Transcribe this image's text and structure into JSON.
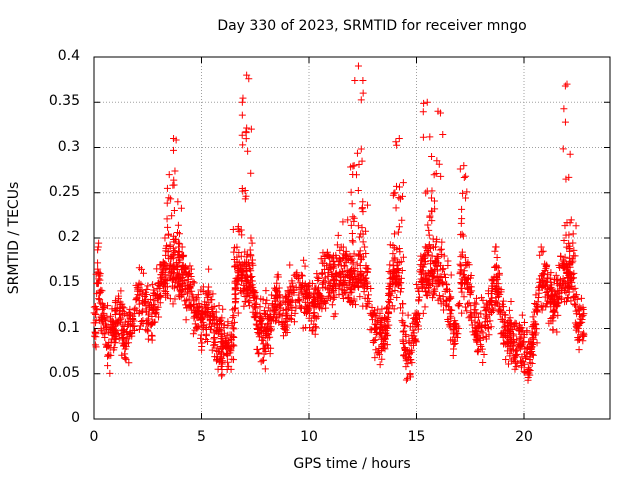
{
  "chart_data": {
    "type": "scatter",
    "title": "Day 330 of 2023, SRMTID for receiver mngo",
    "xlabel": "GPS time / hours",
    "ylabel": "SRMTID / TECUs",
    "xlim": [
      0,
      24
    ],
    "ylim": [
      0,
      0.4
    ],
    "xticks": [
      "0",
      "5",
      "10",
      "15",
      "20"
    ],
    "xtick_values": [
      0,
      5,
      10,
      15,
      20
    ],
    "yticks": [
      "0",
      "0.05",
      "0.1",
      "0.15",
      "0.2",
      "0.25",
      "0.3",
      "0.35",
      "0.4"
    ],
    "ytick_values": [
      0,
      0.05,
      0.1,
      0.15,
      0.2,
      0.25,
      0.3,
      0.35,
      0.4
    ],
    "grid": true,
    "marker": "+",
    "marker_color": "#ff0000",
    "x_data_extent": [
      0,
      22.8
    ],
    "approx_point_count": 2400,
    "series": [
      {
        "name": "SRMTID (sampled)",
        "points": [
          [
            0.1,
            0.16
          ],
          [
            0.2,
            0.19
          ],
          [
            0.3,
            0.14
          ],
          [
            0.5,
            0.09
          ],
          [
            0.7,
            0.07
          ],
          [
            0.9,
            0.1
          ],
          [
            1.2,
            0.12
          ],
          [
            1.5,
            0.08
          ],
          [
            1.8,
            0.11
          ],
          [
            2.1,
            0.15
          ],
          [
            2.4,
            0.13
          ],
          [
            2.7,
            0.12
          ],
          [
            3.0,
            0.15
          ],
          [
            3.3,
            0.2
          ],
          [
            3.5,
            0.27
          ],
          [
            3.7,
            0.31
          ],
          [
            3.9,
            0.24
          ],
          [
            4.1,
            0.19
          ],
          [
            4.4,
            0.16
          ],
          [
            4.7,
            0.12
          ],
          [
            5.0,
            0.11
          ],
          [
            5.3,
            0.14
          ],
          [
            5.6,
            0.09
          ],
          [
            5.9,
            0.08
          ],
          [
            6.2,
            0.07
          ],
          [
            6.5,
            0.09
          ],
          [
            6.7,
            0.21
          ],
          [
            6.9,
            0.35
          ],
          [
            7.1,
            0.38
          ],
          [
            7.3,
            0.2
          ],
          [
            7.6,
            0.1
          ],
          [
            7.9,
            0.09
          ],
          [
            8.2,
            0.11
          ],
          [
            8.5,
            0.15
          ],
          [
            8.8,
            0.12
          ],
          [
            9.1,
            0.14
          ],
          [
            9.4,
            0.16
          ],
          [
            9.7,
            0.15
          ],
          [
            10.0,
            0.14
          ],
          [
            10.3,
            0.13
          ],
          [
            10.6,
            0.16
          ],
          [
            10.9,
            0.18
          ],
          [
            11.2,
            0.17
          ],
          [
            11.5,
            0.19
          ],
          [
            11.8,
            0.22
          ],
          [
            12.1,
            0.28
          ],
          [
            12.3,
            0.39
          ],
          [
            12.5,
            0.24
          ],
          [
            12.8,
            0.13
          ],
          [
            13.1,
            0.1
          ],
          [
            13.4,
            0.08
          ],
          [
            13.7,
            0.13
          ],
          [
            14.0,
            0.25
          ],
          [
            14.2,
            0.31
          ],
          [
            14.4,
            0.07
          ],
          [
            14.7,
            0.05
          ],
          [
            15.0,
            0.11
          ],
          [
            15.2,
            0.18
          ],
          [
            15.5,
            0.35
          ],
          [
            15.7,
            0.29
          ],
          [
            16.0,
            0.34
          ],
          [
            16.3,
            0.16
          ],
          [
            16.6,
            0.12
          ],
          [
            16.9,
            0.09
          ],
          [
            17.2,
            0.28
          ],
          [
            17.5,
            0.14
          ],
          [
            17.8,
            0.1
          ],
          [
            18.1,
            0.09
          ],
          [
            18.4,
            0.13
          ],
          [
            18.7,
            0.19
          ],
          [
            19.0,
            0.11
          ],
          [
            19.3,
            0.09
          ],
          [
            19.6,
            0.07
          ],
          [
            19.9,
            0.08
          ],
          [
            20.2,
            0.05
          ],
          [
            20.5,
            0.1
          ],
          [
            20.8,
            0.19
          ],
          [
            21.1,
            0.16
          ],
          [
            21.4,
            0.13
          ],
          [
            21.7,
            0.18
          ],
          [
            22.0,
            0.37
          ],
          [
            22.2,
            0.22
          ],
          [
            22.5,
            0.09
          ],
          [
            22.7,
            0.11
          ]
        ]
      }
    ]
  }
}
